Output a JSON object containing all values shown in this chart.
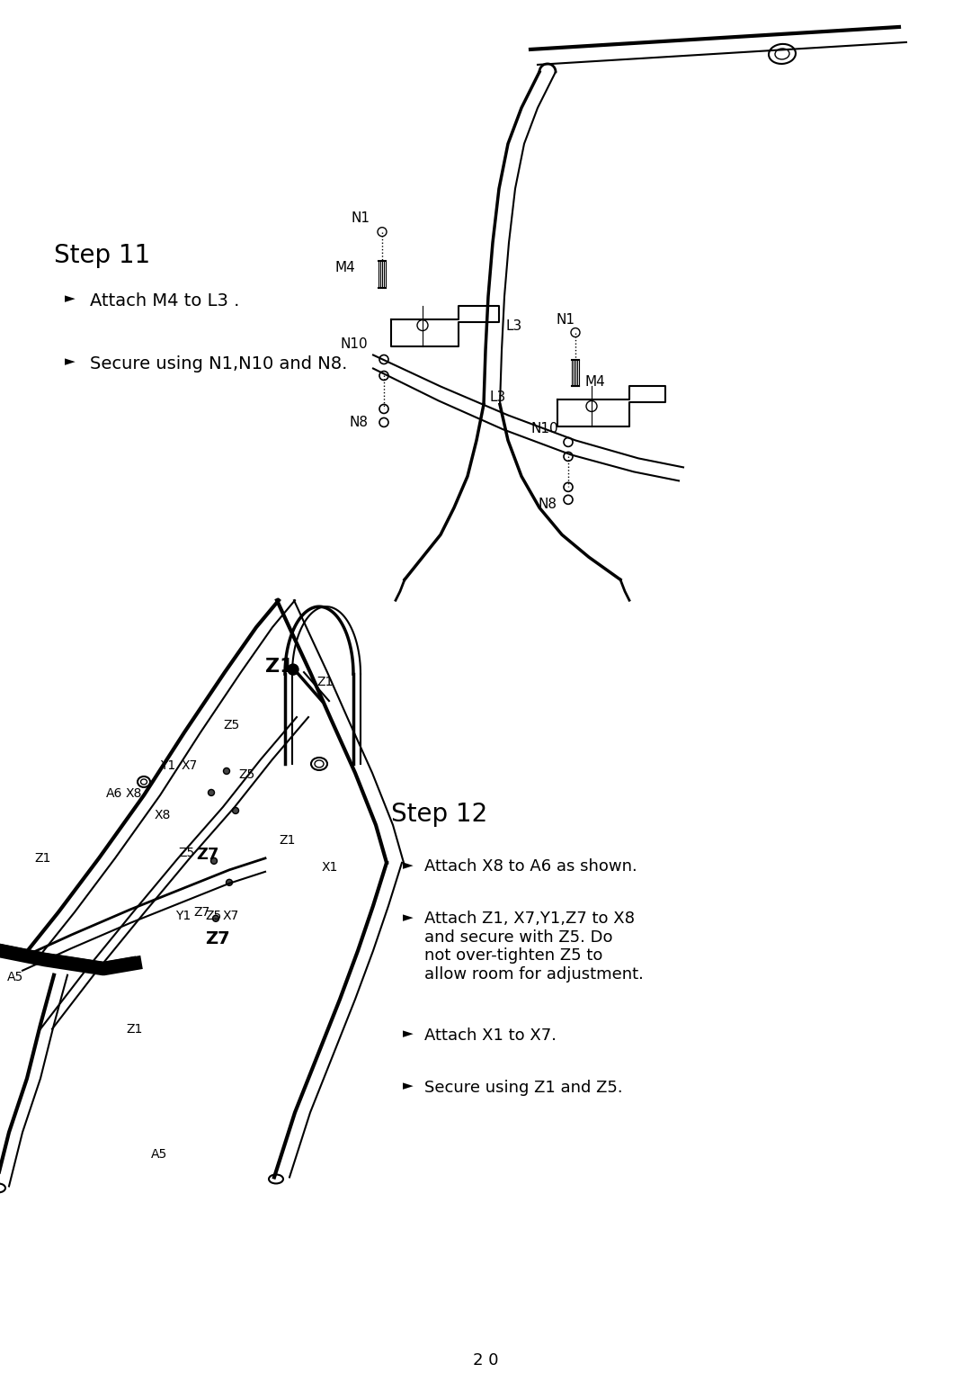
{
  "page_width": 10.8,
  "page_height": 15.26,
  "background_color": "#ffffff",
  "step11_title": "Step 11",
  "step11_bullets": [
    "Attach M4 to L3 .",
    "Secure using N1,N10 and N8."
  ],
  "step12_title": "Step 12",
  "step12_bullets": [
    "Attach X8 to A6 as shown.",
    "Attach Z1, X7,Y1,Z7 to X8\nand secure with Z5. Do\nnot over-tighten Z5 to\nallow room for adjustment.",
    "Attach X1 to X7.",
    "Secure using Z1 and Z5."
  ],
  "page_number": "2 0",
  "text_color": "#000000",
  "line_color": "#000000"
}
